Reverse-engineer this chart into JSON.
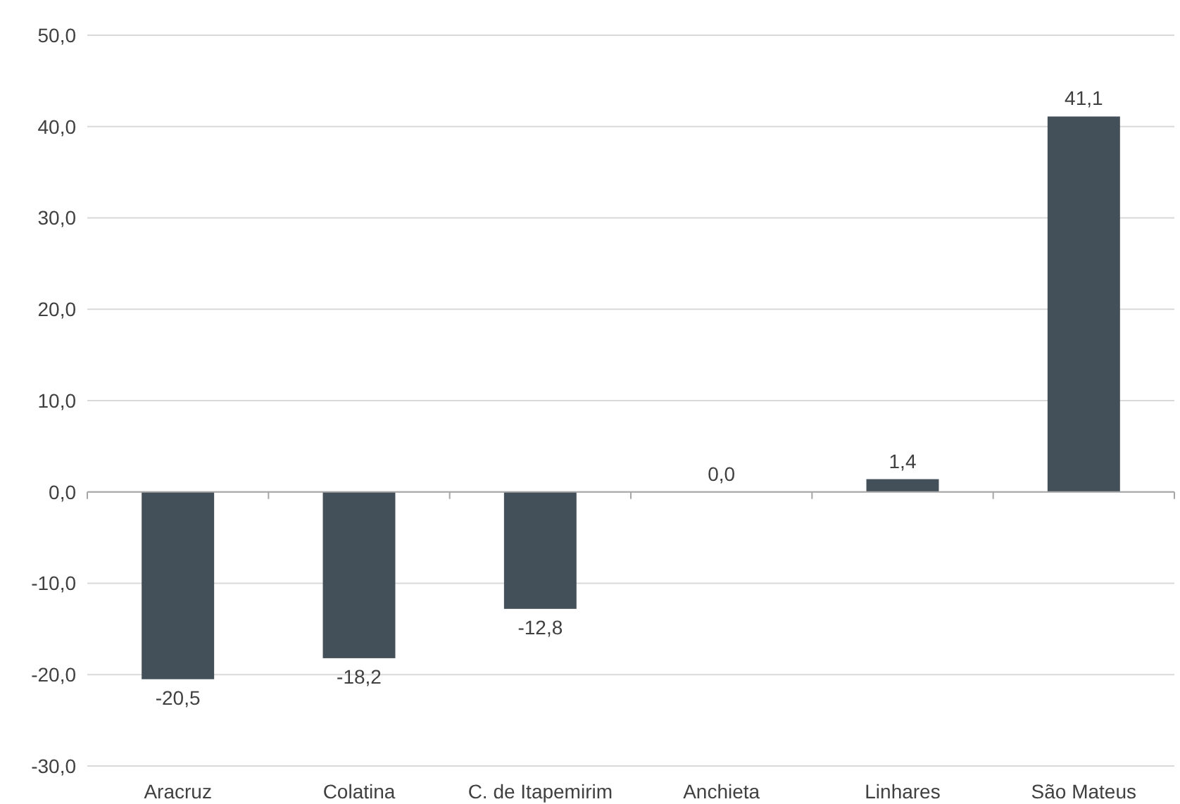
{
  "chart_data": {
    "type": "bar",
    "categories": [
      "Aracruz",
      "Colatina",
      "C. de Itapemirim",
      "Anchieta",
      "Linhares",
      "São Mateus"
    ],
    "values": [
      -20.5,
      -18.2,
      -12.8,
      0.0,
      1.4,
      41.1
    ],
    "value_labels": [
      "-20,5",
      "-18,2",
      "-12,8",
      "0,0",
      "1,4",
      "41,1"
    ],
    "color": "#434f59",
    "ylim": [
      -30,
      50
    ],
    "yticks": [
      {
        "value": -30,
        "label": "-30,0"
      },
      {
        "value": -20,
        "label": "-20,0"
      },
      {
        "value": -10,
        "label": "-10,0"
      },
      {
        "value": 0,
        "label": "0,0"
      },
      {
        "value": 10,
        "label": "10,0"
      },
      {
        "value": 20,
        "label": "20,0"
      },
      {
        "value": 30,
        "label": "30,0"
      },
      {
        "value": 40,
        "label": "40,0"
      },
      {
        "value": 50,
        "label": "50,0"
      }
    ],
    "grid": "y"
  }
}
